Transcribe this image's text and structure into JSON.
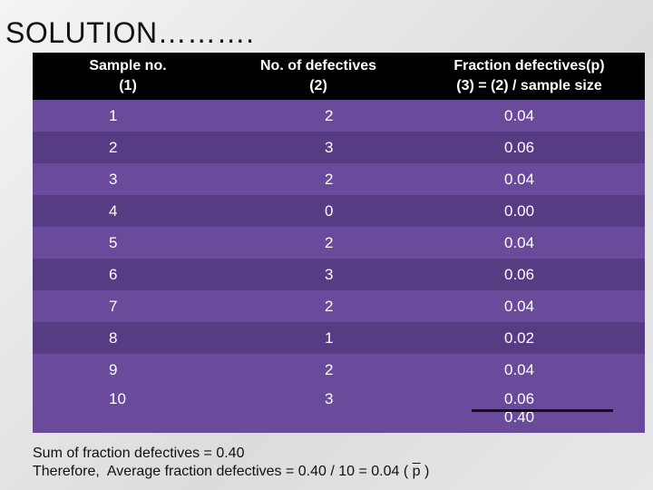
{
  "title": "SOLUTION……….",
  "table": {
    "headers": [
      {
        "line1": "Sample no.",
        "line2": "(1)"
      },
      {
        "line1": "No. of defectives",
        "line2": "(2)"
      },
      {
        "line1": "Fraction defectives(p)",
        "line2": "(3) = (2) / sample size"
      }
    ],
    "rows": [
      {
        "sample": "1",
        "defectives": "2",
        "fraction": "0.04"
      },
      {
        "sample": "2",
        "defectives": "3",
        "fraction": "0.06"
      },
      {
        "sample": "3",
        "defectives": "2",
        "fraction": "0.04"
      },
      {
        "sample": "4",
        "defectives": "0",
        "fraction": "0.00"
      },
      {
        "sample": "5",
        "defectives": "2",
        "fraction": "0.04"
      },
      {
        "sample": "6",
        "defectives": "3",
        "fraction": "0.06"
      },
      {
        "sample": "7",
        "defectives": "2",
        "fraction": "0.04"
      },
      {
        "sample": "8",
        "defectives": "1",
        "fraction": "0.02"
      },
      {
        "sample": "9",
        "defectives": "2",
        "fraction": "0.04"
      },
      {
        "sample": "10",
        "defectives": "3",
        "fraction": "0.06"
      }
    ],
    "total": "0.40"
  },
  "summary": {
    "line1": "Sum of fraction defectives = 0.40",
    "line2_prefix": "Therefore,  Average fraction defectives = 0.40 / 10 = 0.04 ( ",
    "line2_symbol": "p",
    "line2_suffix": " )"
  }
}
